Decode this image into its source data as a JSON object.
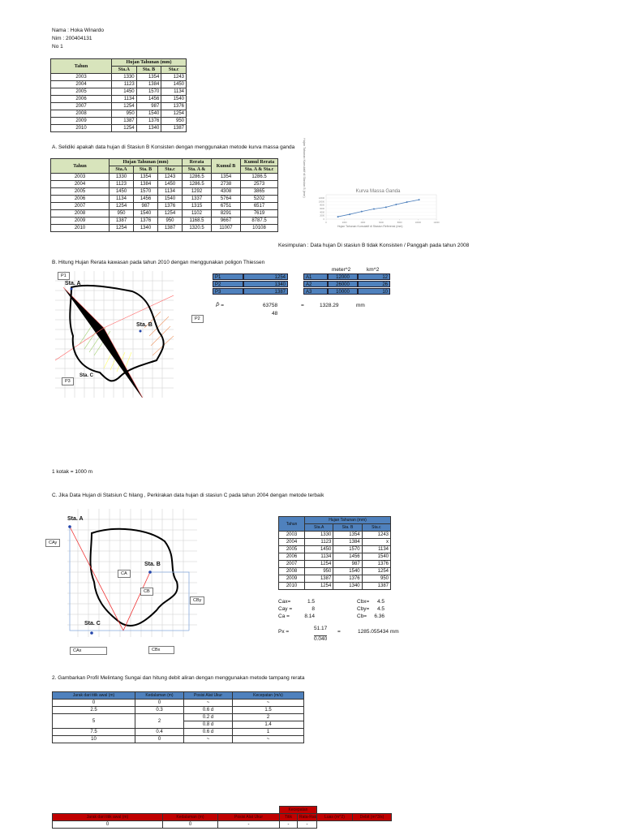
{
  "header": {
    "name": "Nama : Hoka Winardo",
    "nim": "Nim : 200404131",
    "no": "No 1"
  },
  "table1": {
    "col_tahun": "Tahun",
    "col_hujan": "Hujan Tahunan (mm)",
    "sub": [
      "Sta.A",
      "Sta. B",
      "Sta.c"
    ],
    "rows": [
      [
        2003,
        1330,
        1354,
        1243
      ],
      [
        2004,
        1123,
        1384,
        1450
      ],
      [
        2005,
        1450,
        1570,
        1134
      ],
      [
        2006,
        1134,
        1456,
        1540
      ],
      [
        2007,
        1254,
        987,
        1376
      ],
      [
        2008,
        950,
        1540,
        1254
      ],
      [
        2009,
        1387,
        1376,
        950
      ],
      [
        2010,
        1254,
        1340,
        1387
      ]
    ]
  },
  "section_a": {
    "text": "A. Selidiki apakah data hujan di Stasiun B Konsisten dengan menggunakan metode kurva massa ganda",
    "table": {
      "col_tahun": "Tahun",
      "col_hujan": "Hujan Tahunan (mm)",
      "col_rerata": "Rerata",
      "col_kumul_b": "Kumul B",
      "col_kumul_rerata": "Kumul Rerata",
      "sub": [
        "Sta.A",
        "Sta. B",
        "Sta.c",
        "Sta. A &",
        "Sta. A & Sta.c"
      ],
      "rows": [
        [
          2003,
          1330,
          1354,
          1243,
          1286.5,
          1354,
          1286.5
        ],
        [
          2004,
          1123,
          1384,
          1450,
          1286.5,
          2738,
          2573
        ],
        [
          2005,
          1450,
          1570,
          1134,
          1292,
          4308,
          3865
        ],
        [
          2006,
          1134,
          1456,
          1540,
          1337,
          5764,
          5202
        ],
        [
          2007,
          1254,
          987,
          1376,
          1315,
          6751,
          6517
        ],
        [
          2008,
          950,
          1540,
          1254,
          1102,
          8291,
          7619
        ],
        [
          2009,
          1387,
          1376,
          950,
          1168.5,
          9667,
          8787.5
        ],
        [
          2010,
          1254,
          1340,
          1387,
          1320.5,
          11007,
          10108
        ]
      ]
    },
    "chart": {
      "type": "scatter",
      "title": "Kurva Massa Ganda",
      "y_label": "Hujan Tahunan Kumulatif di Stasiun B (mm)",
      "x_label": "Hujan Tahunan Kumulatif di Stasiun Referensi (mm)",
      "color": "#4f81bd",
      "xlim": [
        0,
        12000
      ],
      "ylim": [
        0,
        12000
      ],
      "xticks": [
        0,
        2000,
        4000,
        6000,
        8000,
        10000,
        12000
      ],
      "yticks": [
        0,
        2000,
        4000,
        6000,
        8000,
        10000,
        12000
      ]
    },
    "conclusion": "Kesimpulan : Data hujan Di stasiun B tidak Konsisten / Panggah pada tahun 2008"
  },
  "section_b": {
    "text": "B. Hitung Hujan Rerata kawasan pada tahun 2010 dengan menggunakan poligon Thiessen",
    "map_labels": {
      "p1": "P1",
      "sta_a": "Sta. A",
      "sta_b": "Sta. B",
      "p2": "P2",
      "p3": "P3",
      "sta_c": "Sta. C"
    },
    "unit_m2": "meter^2",
    "unit_km2": "km^2",
    "rows": [
      [
        "P1",
        1254,
        "A1",
        12000,
        12
      ],
      [
        "P2",
        1340,
        "A2",
        26000,
        26
      ],
      [
        "P3",
        1387,
        "A3",
        10000,
        10
      ]
    ],
    "formula": {
      "symbol": "P̄ =",
      "numerator": 63758,
      "denominator": 48,
      "eq": "=",
      "result": 1328.29,
      "unit": "mm"
    },
    "scale": "1 kotak = 1000 m"
  },
  "section_c": {
    "text": "C. Jika Data Hujan di Statsiun C hilang , Perkirakan data hujan di stasiun C pada tahun 2004 dengan metode terbaik",
    "map_labels": {
      "sta_a": "Sta. A",
      "sta_b": "Sta. B",
      "sta_c": "Sta. C",
      "cay": "CAy",
      "ca": "CA",
      "cb": "CB",
      "cby": "CBy",
      "cax": "CAx",
      "cbx": "CBx"
    },
    "table": {
      "col_tahun": "Tahun",
      "col_hujan": "Hujan Tahunan (mm)",
      "sub": [
        "Sta.A",
        "Sta. B",
        "Sta.c"
      ],
      "rows": [
        [
          2003,
          1330,
          1354,
          1243
        ],
        [
          2004,
          1123,
          1384,
          "x"
        ],
        [
          2005,
          1450,
          1570,
          1134
        ],
        [
          2006,
          1134,
          1456,
          1540
        ],
        [
          2007,
          1254,
          987,
          1376
        ],
        [
          2008,
          950,
          1540,
          1254
        ],
        [
          2009,
          1387,
          1376,
          950
        ],
        [
          2010,
          1254,
          1340,
          1387
        ]
      ]
    },
    "coefficients": [
      [
        "Cax=",
        1.5,
        "Cbx=",
        4.5
      ],
      [
        "Cay =",
        8,
        "Cby=",
        4.5
      ],
      [
        "Ca =",
        8.14,
        "Cb=",
        6.36
      ]
    ],
    "px": {
      "label": "Px =",
      "numerator": 51.17,
      "denominator": "0.040",
      "eq": "=",
      "result": 1285.055434,
      "unit": "mm"
    }
  },
  "section_2": {
    "text": "2. Gambarkan Profil Melintang Sungai dan hitung debit aliran dengan menggunakan metode tampang rerata",
    "headers": [
      "Jarak dari titik awal (m)",
      "Kedalaman (m)",
      "Posisi Alat Ukur",
      "Kecepatan (m/s)"
    ],
    "rows": [
      {
        "jarak": 0,
        "kedalaman": 0,
        "posisi": [
          "~"
        ],
        "kecepatan": [
          "~"
        ]
      },
      {
        "jarak": 2.5,
        "kedalaman": 0.3,
        "posisi": [
          "0.6 d"
        ],
        "kecepatan": [
          1.5
        ]
      },
      {
        "jarak": 5,
        "kedalaman": 2,
        "posisi": [
          "0.2 d",
          "0.8 d"
        ],
        "kecepatan": [
          2,
          1.4
        ]
      },
      {
        "jarak": 7.5,
        "kedalaman": 0.4,
        "posisi": [
          "0.6 d"
        ],
        "kecepatan": [
          1
        ]
      },
      {
        "jarak": 10,
        "kedalaman": 0,
        "posisi": [
          "~"
        ],
        "kecepatan": [
          "~"
        ]
      }
    ],
    "table2": {
      "group": "Kecepatan",
      "headers": [
        "Jarak dari titik awal (m)",
        "Kedalaman (m)",
        "Posisi Alat Ukur",
        "Titik",
        "Rata-Rata",
        "Luas (m^2)",
        "Debit (m^3/s)"
      ],
      "first_row": [
        0,
        0,
        "-",
        "-",
        "-"
      ]
    }
  }
}
